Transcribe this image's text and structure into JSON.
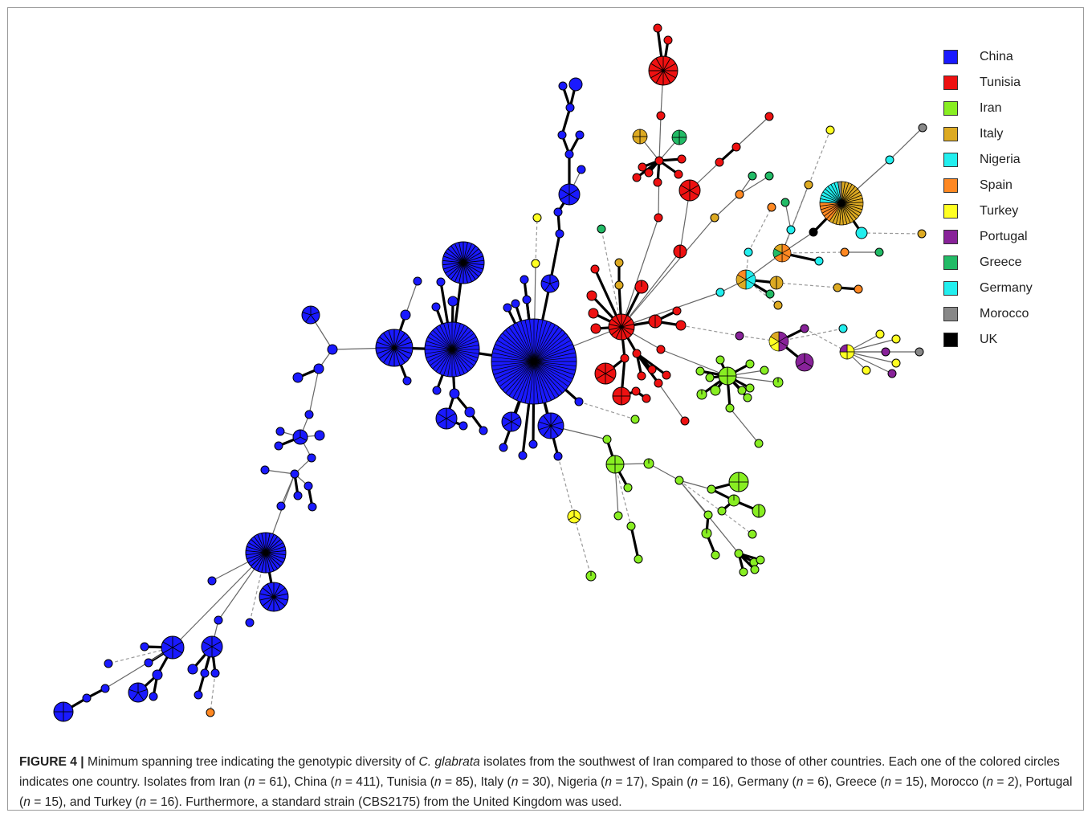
{
  "colors": {
    "China": "#1a1aff",
    "Tunisia": "#ee1111",
    "Iran": "#88ee22",
    "Italy": "#ddaa22",
    "Nigeria": "#22eeee",
    "Spain": "#ff8822",
    "Turkey": "#ffff22",
    "Portugal": "#882299",
    "Greece": "#22bb66",
    "Germany": "#22eeee",
    "Morocco": "#888888",
    "UK": "#000000"
  },
  "legend": [
    {
      "label": "China",
      "color": "#1a1aff"
    },
    {
      "label": "Tunisia",
      "color": "#ee1111"
    },
    {
      "label": "Iran",
      "color": "#88ee22"
    },
    {
      "label": "Italy",
      "color": "#ddaa22"
    },
    {
      "label": "Nigeria",
      "color": "#22eeee"
    },
    {
      "label": "Spain",
      "color": "#ff8822"
    },
    {
      "label": "Turkey",
      "color": "#ffff22"
    },
    {
      "label": "Portugal",
      "color": "#882299"
    },
    {
      "label": "Greece",
      "color": "#22bb66"
    },
    {
      "label": "Germany",
      "color": "#22eeee"
    },
    {
      "label": "Morocco",
      "color": "#888888"
    },
    {
      "label": "UK",
      "color": "#000000"
    }
  ],
  "caption": {
    "label": "FIGURE 4 |",
    "text_1": " Minimum spanning tree indicating the genotypic diversity of ",
    "species": "C. glabrata",
    "text_2": " isolates from the southwest of Iran compared to those of other countries. Each one of the colored circles indicates one country. Isolates from Iran (",
    "n": "n",
    "eq_iran": " = 61), China (",
    "eq_china": " = 411), Tunisia (",
    "eq_tunisia": " = 85), Italy (",
    "eq_italy": " = 30), Nigeria (",
    "eq_nigeria": " = 17), Spain (",
    "eq_spain": " = 16), Germany (",
    "eq_germany": " = 6), Greece (",
    "eq_greece": " = 15), Morocco (",
    "eq_morocco": " = 2), Portugal (",
    "eq_portugal": " = 15), and Turkey (",
    "eq_turkey": " = 16). Furthermore, a standard strain (CBS2175) from the United Kingdom was used."
  }
}
